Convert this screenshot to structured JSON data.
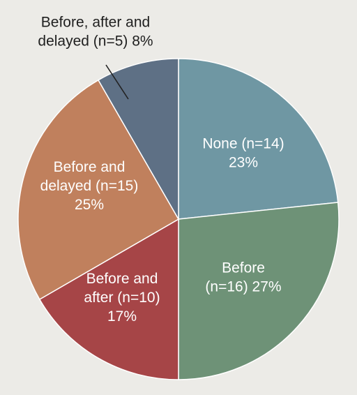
{
  "chart_data": {
    "type": "pie",
    "slices": [
      {
        "label_lines": [
          "None (n=14)",
          "23%"
        ],
        "n": 14,
        "percent": 23,
        "color": "#6f97a3",
        "label_inside": true
      },
      {
        "label_lines": [
          "Before",
          "(n=16) 27%"
        ],
        "n": 16,
        "percent": 27,
        "color": "#6e9277",
        "label_inside": true
      },
      {
        "label_lines": [
          "Before and",
          "after (n=10)",
          "17%"
        ],
        "n": 10,
        "percent": 17,
        "color": "#a64547",
        "label_inside": true
      },
      {
        "label_lines": [
          "Before and",
          "delayed (n=15)",
          "25%"
        ],
        "n": 15,
        "percent": 25,
        "color": "#c0805d",
        "label_inside": true
      },
      {
        "label_lines": [
          "Before, after and",
          "delayed (n=5) 8%"
        ],
        "n": 5,
        "percent": 8,
        "color": "#5e7085",
        "label_inside": false
      }
    ]
  }
}
